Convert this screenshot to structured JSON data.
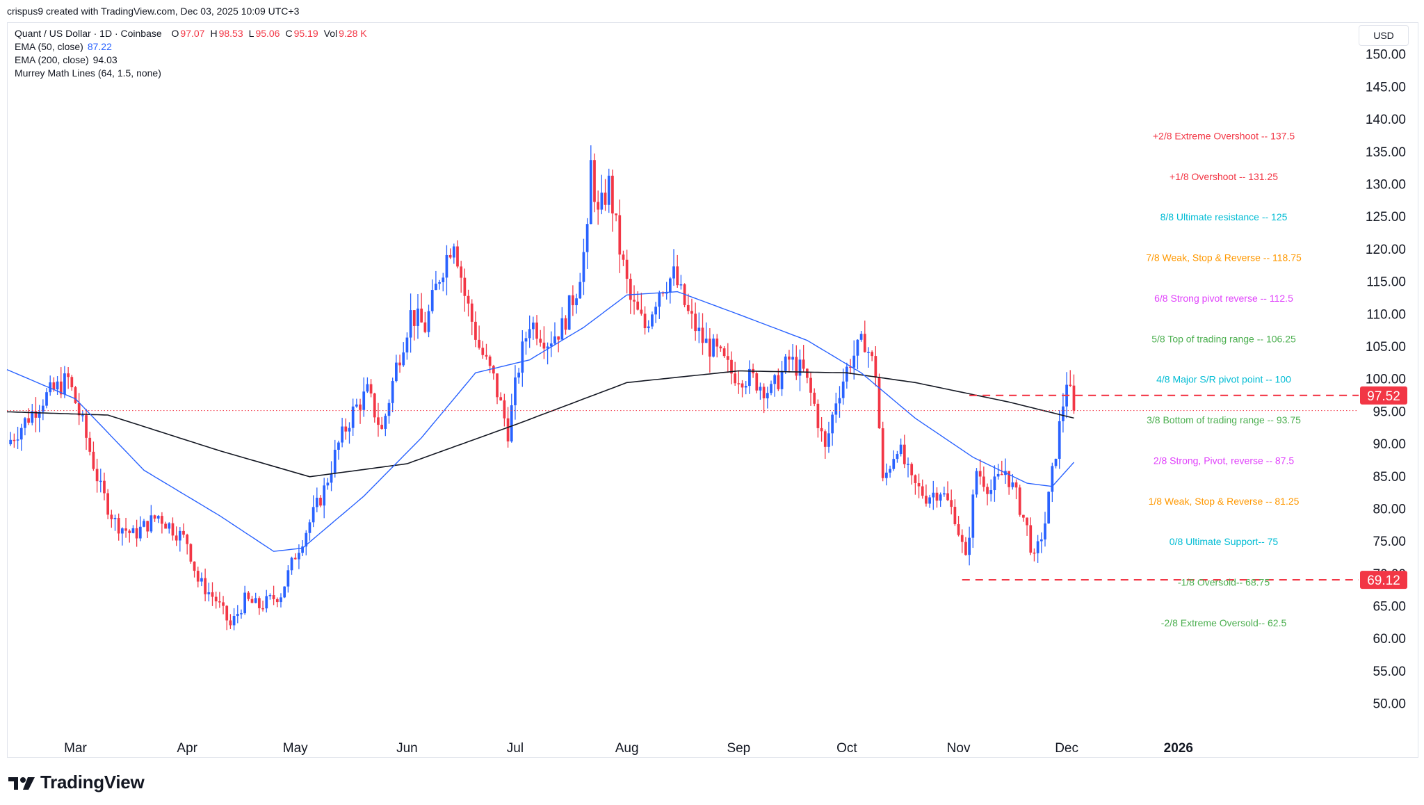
{
  "credit": "crispus9 created with TradingView.com, Dec 03, 2025 10:09 UTC+3",
  "legend": {
    "symbol": "Quant / US Dollar · 1D · Coinbase",
    "ohlc": [
      {
        "k": "O",
        "v": "97.07"
      },
      {
        "k": "H",
        "v": "98.53"
      },
      {
        "k": "L",
        "v": "95.06"
      },
      {
        "k": "C",
        "v": "95.19"
      },
      {
        "k": "Vol",
        "v": "9.28 K"
      }
    ],
    "ema50": {
      "label": "EMA (50, close)",
      "value": "87.22"
    },
    "ema200": {
      "label": "EMA (200, close)",
      "value": "94.03"
    },
    "murrey": "Murrey Math Lines (64, 1.5, none)"
  },
  "currency": "USD",
  "brand": "TradingView",
  "colors": {
    "up": "#2962ff",
    "down": "#f23645",
    "ema50": "#2962ff",
    "ema200": "#131722",
    "axis_text": "#131722",
    "mm_red": "#f23645",
    "mm_blue": "#00bcd4",
    "mm_orange": "#ff9800",
    "mm_magenta": "#e040fb",
    "mm_green": "#4caf50"
  },
  "chart_data": {
    "type": "candlestick",
    "instrument": "Quant / US Dollar",
    "timeframe": "1D",
    "exchange": "Coinbase",
    "ylim": [
      46,
      155
    ],
    "y_ticks": [
      50,
      55,
      60,
      65,
      70,
      75,
      80,
      85,
      90,
      95,
      100,
      105,
      110,
      115,
      120,
      125,
      130,
      135,
      140,
      145,
      150
    ],
    "x_ticks": [
      {
        "label": "Mar",
        "date": "2025-03-01"
      },
      {
        "label": "Apr",
        "date": "2025-04-01"
      },
      {
        "label": "May",
        "date": "2025-05-01"
      },
      {
        "label": "Jun",
        "date": "2025-06-01"
      },
      {
        "label": "Jul",
        "date": "2025-07-01"
      },
      {
        "label": "Aug",
        "date": "2025-08-01"
      },
      {
        "label": "Sep",
        "date": "2025-09-01"
      },
      {
        "label": "Oct",
        "date": "2025-10-01"
      },
      {
        "label": "Nov",
        "date": "2025-11-01"
      },
      {
        "label": "Dec",
        "date": "2025-12-01"
      },
      {
        "label": "2026",
        "date": "2026-01-01"
      }
    ],
    "x_range": [
      "2025-02-10",
      "2026-02-20"
    ],
    "price_anchors": [
      [
        "2025-02-10",
        90
      ],
      [
        "2025-02-20",
        97
      ],
      [
        "2025-02-27",
        100
      ],
      [
        "2025-03-03",
        93
      ],
      [
        "2025-03-08",
        83
      ],
      [
        "2025-03-12",
        78
      ],
      [
        "2025-03-17",
        76
      ],
      [
        "2025-03-24",
        79
      ],
      [
        "2025-03-28",
        77
      ],
      [
        "2025-04-01",
        75
      ],
      [
        "2025-04-04",
        69
      ],
      [
        "2025-04-09",
        66
      ],
      [
        "2025-04-13",
        62
      ],
      [
        "2025-04-17",
        66
      ],
      [
        "2025-04-21",
        65
      ],
      [
        "2025-04-27",
        67
      ],
      [
        "2025-05-01",
        73
      ],
      [
        "2025-05-05",
        78
      ],
      [
        "2025-05-09",
        83
      ],
      [
        "2025-05-13",
        90
      ],
      [
        "2025-05-17",
        95
      ],
      [
        "2025-05-21",
        98
      ],
      [
        "2025-05-25",
        92
      ],
      [
        "2025-05-29",
        102
      ],
      [
        "2025-06-02",
        110
      ],
      [
        "2025-06-06",
        108
      ],
      [
        "2025-06-10",
        116
      ],
      [
        "2025-06-14",
        122
      ],
      [
        "2025-06-17",
        113
      ],
      [
        "2025-06-21",
        105
      ],
      [
        "2025-06-25",
        100
      ],
      [
        "2025-06-29",
        92
      ],
      [
        "2025-07-02",
        102
      ],
      [
        "2025-07-05",
        109
      ],
      [
        "2025-07-10",
        106
      ],
      [
        "2025-07-14",
        108
      ],
      [
        "2025-07-18",
        114
      ],
      [
        "2025-07-21",
        122
      ],
      [
        "2025-07-22",
        133
      ],
      [
        "2025-07-24",
        125
      ],
      [
        "2025-07-27",
        130
      ],
      [
        "2025-07-30",
        120
      ],
      [
        "2025-08-02",
        112
      ],
      [
        "2025-08-06",
        108
      ],
      [
        "2025-08-10",
        114
      ],
      [
        "2025-08-14",
        116
      ],
      [
        "2025-08-18",
        110
      ],
      [
        "2025-08-22",
        106
      ],
      [
        "2025-08-26",
        104
      ],
      [
        "2025-08-30",
        101
      ],
      [
        "2025-09-05",
        100
      ],
      [
        "2025-09-10",
        98
      ],
      [
        "2025-09-15",
        103
      ],
      [
        "2025-09-19",
        101
      ],
      [
        "2025-09-22",
        96
      ],
      [
        "2025-09-25",
        89
      ],
      [
        "2025-09-28",
        97
      ],
      [
        "2025-10-02",
        103
      ],
      [
        "2025-10-06",
        106
      ],
      [
        "2025-10-09",
        101
      ],
      [
        "2025-10-11",
        84
      ],
      [
        "2025-10-15",
        90
      ],
      [
        "2025-10-19",
        84
      ],
      [
        "2025-10-23",
        82
      ],
      [
        "2025-10-27",
        83
      ],
      [
        "2025-10-31",
        79
      ],
      [
        "2025-11-03",
        72
      ],
      [
        "2025-11-06",
        86
      ],
      [
        "2025-11-10",
        83
      ],
      [
        "2025-11-14",
        86
      ],
      [
        "2025-11-17",
        82
      ],
      [
        "2025-11-20",
        77
      ],
      [
        "2025-11-22",
        72
      ],
      [
        "2025-11-25",
        78
      ],
      [
        "2025-11-28",
        89
      ],
      [
        "2025-12-01",
        100
      ],
      [
        "2025-12-03",
        95.19
      ]
    ],
    "ema50_anchors": [
      [
        "2025-02-10",
        101.5
      ],
      [
        "2025-03-01",
        97
      ],
      [
        "2025-03-20",
        86
      ],
      [
        "2025-04-10",
        79
      ],
      [
        "2025-04-25",
        73.5
      ],
      [
        "2025-05-03",
        74
      ],
      [
        "2025-05-20",
        82
      ],
      [
        "2025-06-05",
        91
      ],
      [
        "2025-06-20",
        101
      ],
      [
        "2025-07-05",
        103
      ],
      [
        "2025-07-20",
        108
      ],
      [
        "2025-08-01",
        113
      ],
      [
        "2025-08-15",
        113.5
      ],
      [
        "2025-09-01",
        110
      ],
      [
        "2025-09-20",
        106
      ],
      [
        "2025-10-05",
        101
      ],
      [
        "2025-10-20",
        94
      ],
      [
        "2025-11-05",
        88
      ],
      [
        "2025-11-20",
        84
      ],
      [
        "2025-11-27",
        83.5
      ],
      [
        "2025-12-03",
        87.22
      ]
    ],
    "ema200_anchors": [
      [
        "2025-02-10",
        95
      ],
      [
        "2025-03-10",
        94.5
      ],
      [
        "2025-04-10",
        89
      ],
      [
        "2025-05-05",
        85
      ],
      [
        "2025-06-01",
        87
      ],
      [
        "2025-07-01",
        93
      ],
      [
        "2025-08-01",
        99.5
      ],
      [
        "2025-09-01",
        101.3
      ],
      [
        "2025-10-01",
        101
      ],
      [
        "2025-10-20",
        99.5
      ],
      [
        "2025-11-15",
        96.5
      ],
      [
        "2025-12-03",
        94.03
      ]
    ],
    "last_price": 95.19,
    "series": [
      {
        "name": "EMA (50, close)",
        "last": 87.22
      },
      {
        "name": "EMA (200, close)",
        "last": 94.03
      }
    ],
    "horizontal_lines": [
      {
        "value": 97.52,
        "label": "97.52",
        "from": "2025-11-04",
        "style": "dashed",
        "color": "#f23645"
      },
      {
        "value": 69.12,
        "label": "69.12",
        "from": "2025-11-02",
        "style": "dashed",
        "color": "#f23645"
      }
    ],
    "murrey_math": [
      {
        "label": "+2/8 Extreme Overshoot --  137.5",
        "value": 137.5,
        "color": "#f23645"
      },
      {
        "label": "+1/8 Overshoot --  131.25",
        "value": 131.25,
        "color": "#f23645"
      },
      {
        "label": "8/8 Ultimate resistance --  125",
        "value": 125,
        "color": "#00bcd4"
      },
      {
        "label": "7/8 Weak, Stop & Reverse --  118.75",
        "value": 118.75,
        "color": "#ff9800"
      },
      {
        "label": "6/8 Strong pivot reverse --  112.5",
        "value": 112.5,
        "color": "#e040fb"
      },
      {
        "label": "5/8 Top of trading range --  106.25",
        "value": 106.25,
        "color": "#4caf50"
      },
      {
        "label": "4/8 Major S/R pivot point --  100",
        "value": 100,
        "color": "#00bcd4"
      },
      {
        "label": "3/8 Bottom of trading range --  93.75",
        "value": 93.75,
        "color": "#4caf50"
      },
      {
        "label": "2/8 Strong, Pivot, reverse --  87.5",
        "value": 87.5,
        "color": "#e040fb"
      },
      {
        "label": "1/8 Weak, Stop & Reverse --  81.25",
        "value": 81.25,
        "color": "#ff9800"
      },
      {
        "label": "0/8 Ultimate Support--  75",
        "value": 75,
        "color": "#00bcd4"
      },
      {
        "label": "-1/8 Oversold--  68.75",
        "value": 68.75,
        "color": "#4caf50"
      },
      {
        "label": "-2/8 Extreme Oversold--  62.5",
        "value": 62.5,
        "color": "#4caf50"
      }
    ]
  }
}
